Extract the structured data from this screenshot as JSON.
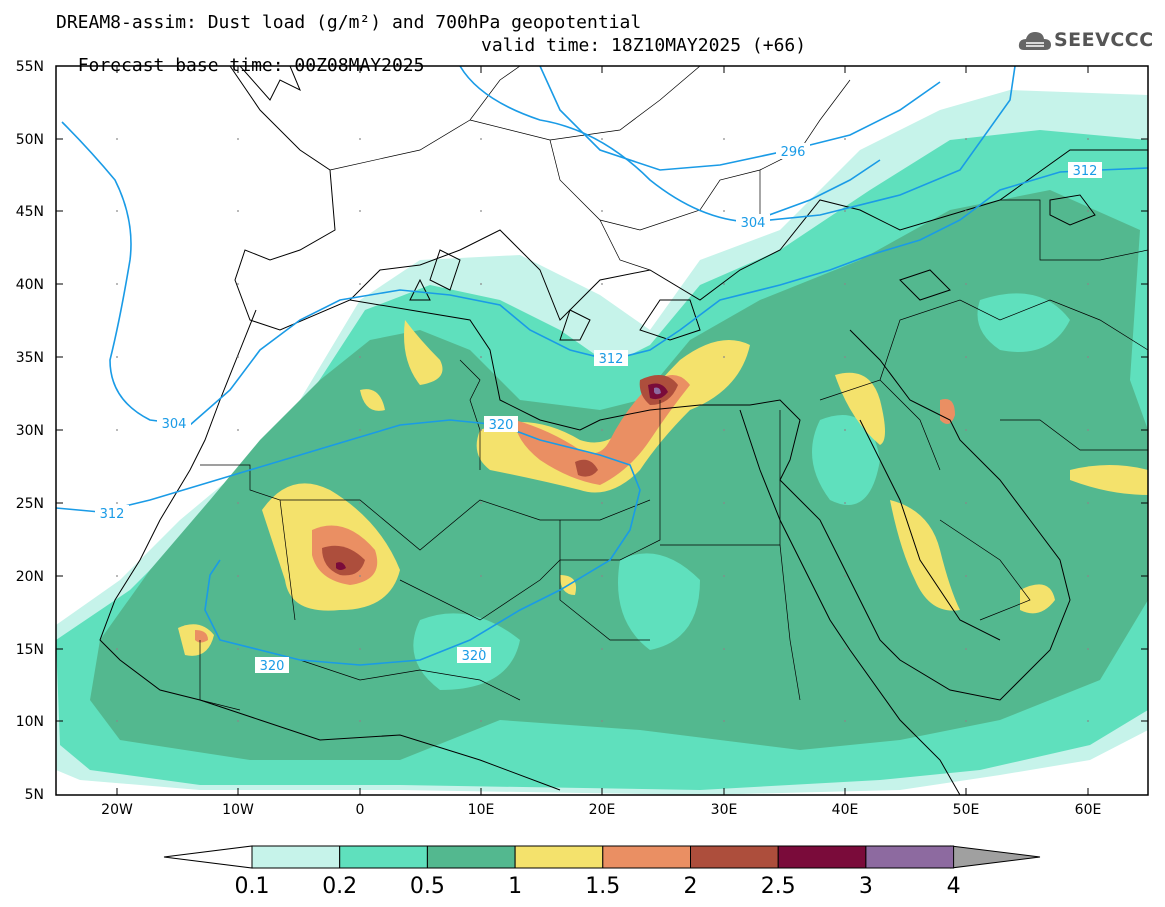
{
  "header": {
    "title": "DREAM8-assim: Dust load (g/m²) and 700hPa geopotential",
    "base_time": "Forecast base time: 00Z08MAY2025",
    "valid_time": "valid time: 18Z10MAY2025 (+66)",
    "logo_text": "SEEVCCC"
  },
  "map": {
    "lat_labels": [
      "55N",
      "50N",
      "45N",
      "40N",
      "35N",
      "30N",
      "25N",
      "20N",
      "15N",
      "10N",
      "5N"
    ],
    "lon_labels": [
      "20W",
      "10W",
      "0",
      "10E",
      "20E",
      "30E",
      "40E",
      "50E",
      "60E"
    ],
    "contour_labels": [
      "296",
      "304",
      "312",
      "304",
      "312",
      "312",
      "320",
      "320",
      "320"
    ]
  },
  "colorbar": {
    "labels": [
      "0.1",
      "0.2",
      "0.5",
      "1",
      "1.5",
      "2",
      "2.5",
      "3",
      "4"
    ],
    "colors": [
      "#c6f3ea",
      "#5fe0bd",
      "#53b88f",
      "#f4e26c",
      "#ea8f63",
      "#ad4e3c",
      "#7a0b3a",
      "#8d6aa0",
      "#a0a0a0"
    ]
  },
  "colors": {
    "geopotential": "#1a9be6",
    "land_background": "#ffffff",
    "border_lines": "#000000"
  }
}
